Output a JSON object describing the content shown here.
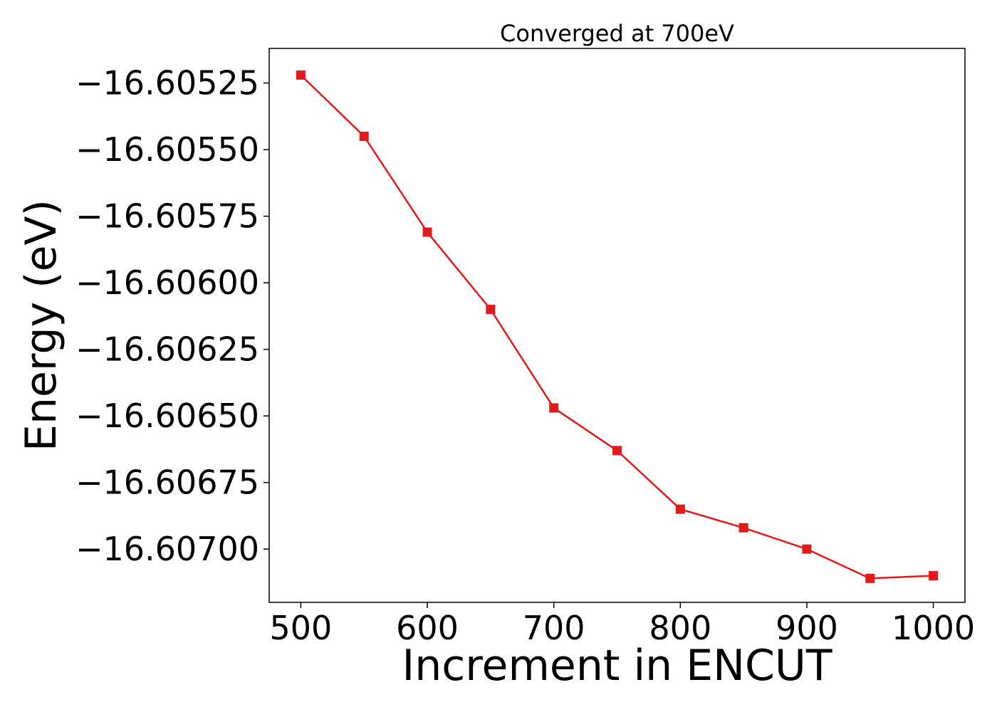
{
  "chart_data": {
    "type": "line",
    "title": "Converged at 700eV",
    "xlabel": "Increment in ENCUT",
    "ylabel": "Energy (eV)",
    "x": [
      500,
      550,
      600,
      650,
      700,
      750,
      800,
      850,
      900,
      950,
      1000
    ],
    "series": [
      {
        "values": [
          -16.60522,
          -16.60545,
          -16.60581,
          -16.6061,
          -16.60647,
          -16.60663,
          -16.60685,
          -16.60692,
          -16.607,
          -16.60711,
          -16.6071
        ]
      }
    ],
    "xlim": [
      475,
      1025
    ],
    "ylim": [
      -16.6072,
      -16.60512
    ],
    "xticks": [
      500,
      600,
      700,
      800,
      900,
      1000
    ],
    "xtick_labels": [
      "500",
      "600",
      "700",
      "800",
      "900",
      "1000"
    ],
    "yticks": [
      -16.60525,
      -16.6055,
      -16.60575,
      -16.606,
      -16.60625,
      -16.6065,
      -16.60675,
      -16.607
    ],
    "ytick_labels": [
      "−16.60525",
      "−16.60550",
      "−16.60575",
      "−16.60600",
      "−16.60625",
      "−16.60650",
      "−16.60675",
      "−16.60700"
    ],
    "grid": false,
    "marker": "square",
    "line_color": "#e31a1c"
  }
}
